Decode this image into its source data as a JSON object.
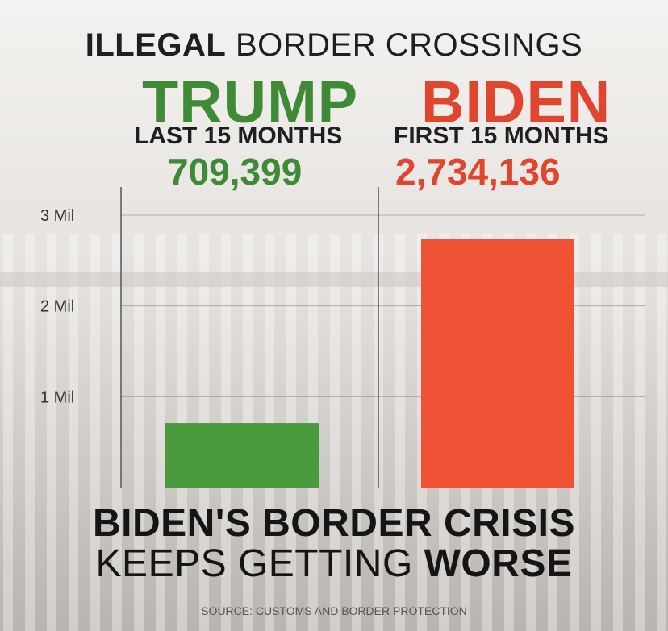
{
  "header": {
    "title_bold": "ILLEGAL",
    "title_rest": "BORDER CROSSINGS"
  },
  "columns": [
    {
      "name": "TRUMP",
      "period": "LAST 15 MONTHS",
      "total": "709,399",
      "color": "#3f8a36"
    },
    {
      "name": "BIDEN",
      "period": "FIRST 15 MONTHS",
      "total": "2,734,136",
      "color": "#e0452e"
    }
  ],
  "footer": {
    "line1": "BIDEN'S BORDER CRISIS",
    "line2_regular": "KEEPS GETTING",
    "line2_bold": "WORSE",
    "source": "SOURCE: CUSTOMS AND BORDER PROTECTION"
  },
  "chart_data": {
    "type": "bar",
    "categories": [
      "TRUMP",
      "BIDEN"
    ],
    "values": [
      709399,
      2734136
    ],
    "ylim": [
      0,
      3000000
    ],
    "yticks": [
      {
        "value": 1000000,
        "label": "1 Mil"
      },
      {
        "value": 2000000,
        "label": "2 Mil"
      },
      {
        "value": 3000000,
        "label": "3 Mil"
      }
    ],
    "colors": [
      "#4a9a3e",
      "#ee5134"
    ],
    "grid": true,
    "title": "",
    "xlabel": "",
    "ylabel": ""
  }
}
